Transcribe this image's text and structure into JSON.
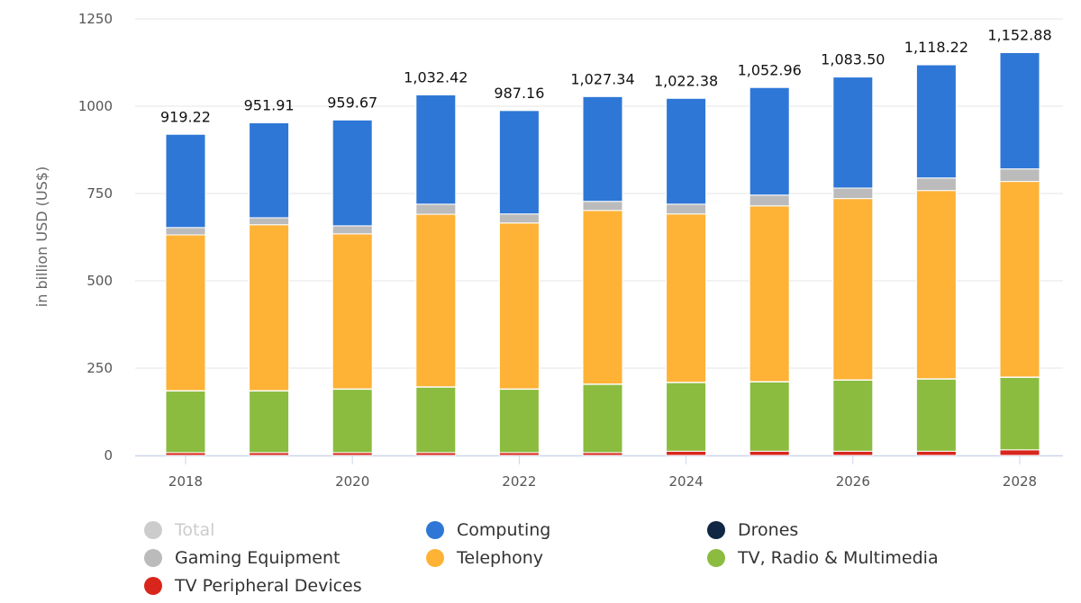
{
  "chart_data": {
    "type": "bar",
    "stacked": true,
    "ylabel": "in billion USD (US$)",
    "ylim": [
      0,
      1250
    ],
    "yticks": [
      0,
      250,
      500,
      750,
      1000,
      1250
    ],
    "grid": true,
    "legend_position": "bottom",
    "categories": [
      "2018",
      "2019",
      "2020",
      "2021",
      "2022",
      "2023",
      "2024",
      "2025",
      "2026",
      "2027",
      "2028"
    ],
    "xtick_labels": [
      "2018",
      "2020",
      "2022",
      "2024",
      "2026",
      "2028"
    ],
    "totals": [
      919.22,
      951.91,
      959.67,
      1032.42,
      987.16,
      1027.34,
      1022.38,
      1052.96,
      1083.5,
      1118.22,
      1152.88
    ],
    "total_labels": [
      "919.22",
      "951.91",
      "959.67",
      "1,032.42",
      "987.16",
      "1,027.34",
      "1,022.38",
      "1,052.96",
      "1,083.50",
      "1,118.22",
      "1,152.88"
    ],
    "series": [
      {
        "name": "TV Peripheral Devices",
        "color": "#d9261c",
        "values": [
          8,
          8,
          8,
          8,
          8,
          8,
          12,
          12,
          12,
          12,
          16
        ]
      },
      {
        "name": "TV, Radio & Multimedia",
        "color": "#8bbc3f",
        "values": [
          177,
          177,
          182,
          188,
          182,
          196,
          197,
          199,
          204,
          207,
          208
        ]
      },
      {
        "name": "Drones",
        "color": "#0f2743",
        "values": [
          0.5,
          0.5,
          0.5,
          0.5,
          0.5,
          0.5,
          0.5,
          0.5,
          0.5,
          0.5,
          0.5
        ]
      },
      {
        "name": "Telephony",
        "color": "#feb236",
        "values": [
          446,
          475,
          444,
          494,
          475,
          497,
          482,
          503,
          519,
          539,
          560
        ]
      },
      {
        "name": "Gaming Equipment",
        "color": "#bbbbbb",
        "values": [
          21,
          20,
          23,
          29,
          26,
          26,
          28,
          31,
          30,
          36,
          36
        ]
      },
      {
        "name": "Computing",
        "color": "#2e77d6",
        "values": [
          267,
          272,
          303,
          313,
          296,
          300,
          303,
          308,
          318,
          324,
          333
        ]
      }
    ]
  },
  "legend": [
    {
      "label": "Total",
      "color": "#cccccc",
      "hidden": true
    },
    {
      "label": "Computing",
      "color": "#2e77d6"
    },
    {
      "label": "Drones",
      "color": "#0f2743"
    },
    {
      "label": "Gaming Equipment",
      "color": "#bbbbbb"
    },
    {
      "label": "Telephony",
      "color": "#feb236"
    },
    {
      "label": "TV, Radio & Multimedia",
      "color": "#8bbc3f"
    },
    {
      "label": "TV Peripheral Devices",
      "color": "#d9261c"
    }
  ]
}
